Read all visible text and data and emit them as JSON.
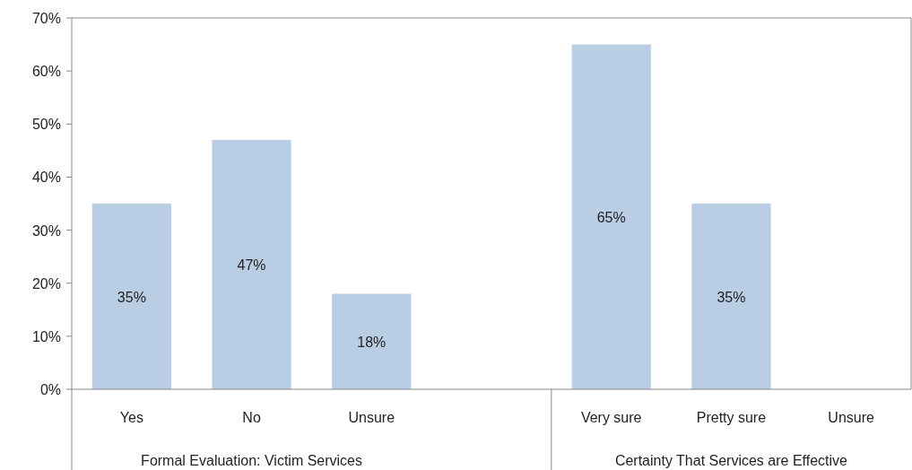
{
  "chart_data": {
    "type": "bar",
    "categories": [
      "Yes",
      "No",
      "Unsure",
      null,
      "Very sure",
      "Pretty sure",
      "Unsure"
    ],
    "values": [
      35,
      47,
      18,
      null,
      65,
      35,
      null
    ],
    "color": "#b9cde5",
    "ylim": [
      0,
      70
    ],
    "yticks": [
      {
        "value": 0,
        "label": "0%"
      },
      {
        "value": 10,
        "label": "10%"
      },
      {
        "value": 20,
        "label": "20%"
      },
      {
        "value": 30,
        "label": "30%"
      },
      {
        "value": 40,
        "label": "40%"
      },
      {
        "value": 50,
        "label": "50%"
      },
      {
        "value": 60,
        "label": "60%"
      },
      {
        "value": 70,
        "label": "70%"
      }
    ],
    "value_labels": [
      "35%",
      "47%",
      "18%",
      null,
      "65%",
      "35%",
      null
    ],
    "annotations": [
      "Formal Evaluation: Victim Services",
      "Certainty That Services are Effective"
    ]
  }
}
